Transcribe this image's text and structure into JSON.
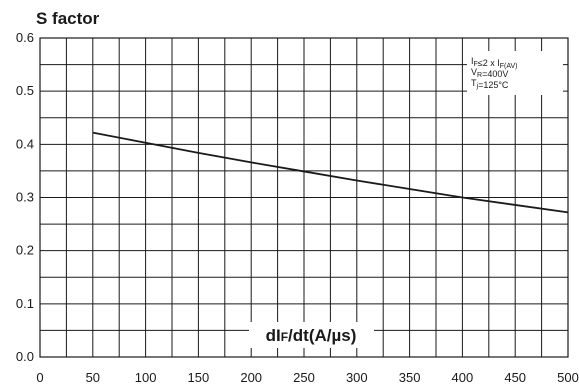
{
  "chart_data": {
    "type": "line",
    "title": "S factor",
    "xlabel_main": "dI",
    "xlabel_sub": "F",
    "xlabel_rest": "/dt(A/µs)",
    "conditions": [
      {
        "main": "I",
        "sub": "F",
        "rest": "≤2 x I",
        "sub2": "F(AV)"
      },
      {
        "main": "V",
        "sub": "R",
        "rest": "=400V",
        "sub2": ""
      },
      {
        "main": "T",
        "sub": "j",
        "rest": "=125°C",
        "sub2": ""
      }
    ],
    "xlim": [
      0,
      500
    ],
    "ylim": [
      0.0,
      0.6
    ],
    "x_ticks": [
      "0",
      "50",
      "100",
      "150",
      "200",
      "250",
      "300",
      "350",
      "400",
      "450",
      "500"
    ],
    "y_ticks": [
      "0.0",
      "0.1",
      "0.2",
      "0.3",
      "0.4",
      "0.5",
      "0.6"
    ],
    "grid": true,
    "series": [
      {
        "x": [
          50,
          100,
          150,
          200,
          250,
          300,
          350,
          400,
          450,
          500
        ],
        "values": [
          0.422,
          0.403,
          0.384,
          0.366,
          0.349,
          0.332,
          0.316,
          0.3,
          0.286,
          0.272
        ]
      }
    ],
    "colors": {
      "line": "#1a1a1a",
      "grid": "#1a1a1a",
      "background": "#ffffff"
    }
  }
}
